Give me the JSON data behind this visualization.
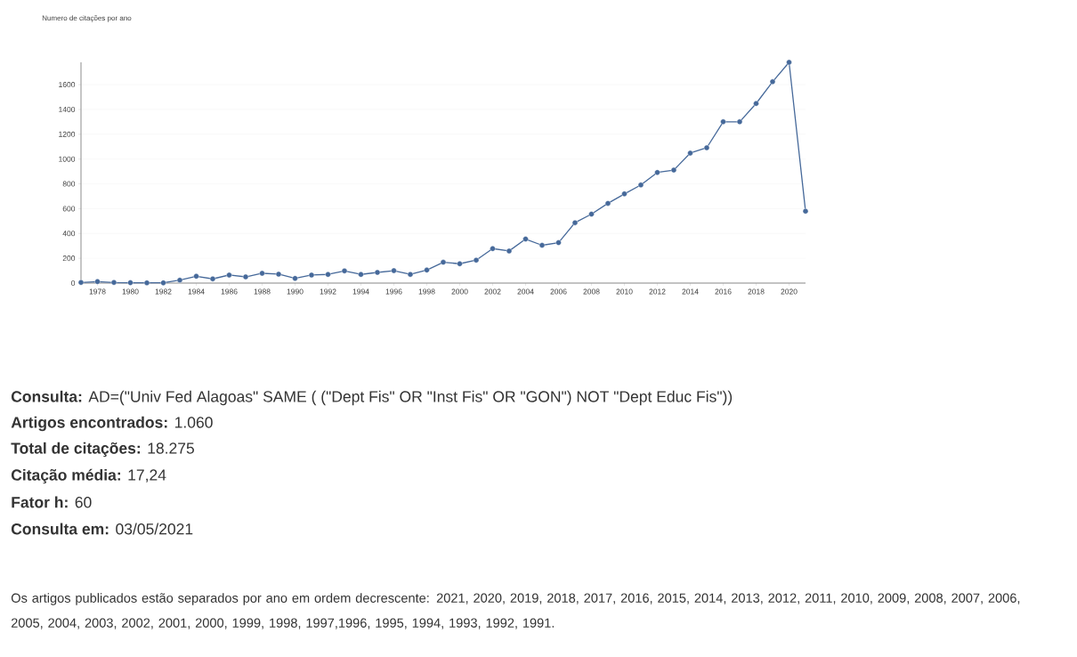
{
  "chart_data": {
    "type": "line",
    "title": "Numero de citações por ano",
    "x": [
      1977,
      1978,
      1979,
      1980,
      1981,
      1982,
      1983,
      1984,
      1985,
      1986,
      1987,
      1988,
      1989,
      1990,
      1991,
      1992,
      1993,
      1994,
      1995,
      1996,
      1997,
      1998,
      1999,
      2000,
      2001,
      2002,
      2003,
      2004,
      2005,
      2006,
      2007,
      2008,
      2009,
      2010,
      2011,
      2012,
      2013,
      2014,
      2015,
      2016,
      2017,
      2018,
      2019,
      2020,
      2021
    ],
    "series": [
      {
        "color": "#46699a",
        "values": [
          5,
          12,
          5,
          3,
          2,
          2,
          24,
          55,
          34,
          65,
          50,
          79,
          72,
          38,
          65,
          70,
          98,
          70,
          86,
          100,
          70,
          105,
          168,
          156,
          185,
          278,
          259,
          355,
          305,
          326,
          487,
          556,
          643,
          719,
          791,
          892,
          911,
          1048,
          1091,
          1300,
          1300,
          1448,
          1623,
          1780,
          580
        ]
      }
    ],
    "xlim": [
      1977,
      2021
    ],
    "xticks": [
      1978,
      1980,
      1982,
      1984,
      1986,
      1988,
      1990,
      1992,
      1994,
      1996,
      1998,
      2000,
      2002,
      2004,
      2006,
      2008,
      2010,
      2012,
      2014,
      2016,
      2018,
      2020
    ],
    "ylim": [
      0,
      1780
    ],
    "yticks": [
      0,
      200,
      400,
      600,
      800,
      1000,
      1200,
      1400,
      1600
    ],
    "grid": "y",
    "marker": "circle",
    "line_style": "solid",
    "annotations": [
      "**Consulta:** AD=(\"Univ Fed Alagoas\" SAME ( (\"Dept Fis\" OR \"Inst Fis\" OR \"GON\") NOT \"Dept Educ Fis\"))",
      "**Artigos encontrados:** 1.060",
      "**Total de citações:** 18.275",
      "**Citação média:** 17,24",
      "**Fator h:** 60",
      "**Consulta em:** 03/05/2021",
      "Os artigos publicados estão separados por ano em ordem decrescente: 2021, 2020, 2019, 2018, 2017, 2016, 2015, 2014, 2013, 2012, 2011, 2010, 2009, 2008, 2007, 2006, 2005, 2004, 2003, 2002, 2001, 2000, 1999, 1998, 1997,1996, 1995, 1994, 1993, 1992, 1991."
    ]
  }
}
